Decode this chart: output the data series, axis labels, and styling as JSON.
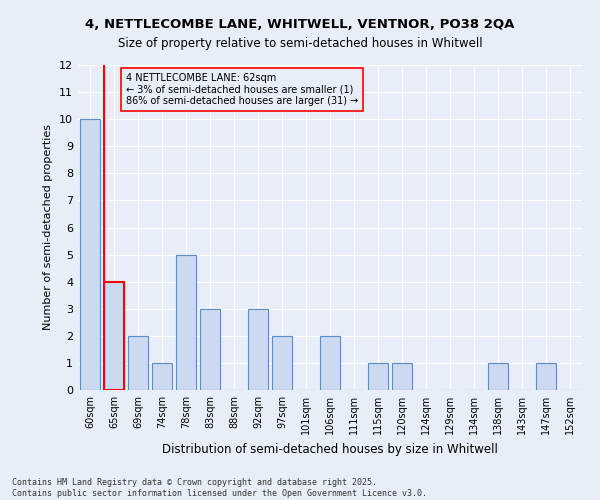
{
  "title1": "4, NETTLECOMBE LANE, WHITWELL, VENTNOR, PO38 2QA",
  "title2": "Size of property relative to semi-detached houses in Whitwell",
  "xlabel": "Distribution of semi-detached houses by size in Whitwell",
  "ylabel": "Number of semi-detached properties",
  "categories": [
    "60sqm",
    "65sqm",
    "69sqm",
    "74sqm",
    "78sqm",
    "83sqm",
    "88sqm",
    "92sqm",
    "97sqm",
    "101sqm",
    "106sqm",
    "111sqm",
    "115sqm",
    "120sqm",
    "124sqm",
    "129sqm",
    "134sqm",
    "138sqm",
    "143sqm",
    "147sqm",
    "152sqm"
  ],
  "values": [
    10,
    4,
    2,
    1,
    5,
    3,
    0,
    3,
    2,
    0,
    2,
    0,
    1,
    1,
    0,
    0,
    0,
    1,
    0,
    1,
    0
  ],
  "highlight_index": 1,
  "bar_color": "#ccd9f0",
  "bar_edge_color": "#5b8ec4",
  "highlight_bar_edge_color": "red",
  "annotation_title": "4 NETTLECOMBE LANE: 62sqm",
  "annotation_line1": "← 3% of semi-detached houses are smaller (1)",
  "annotation_line2": "86% of semi-detached houses are larger (31) →",
  "annotation_box_edge": "red",
  "ylim": [
    0,
    12
  ],
  "yticks": [
    0,
    1,
    2,
    3,
    4,
    5,
    6,
    7,
    8,
    9,
    10,
    11,
    12
  ],
  "footnote1": "Contains HM Land Registry data © Crown copyright and database right 2025.",
  "footnote2": "Contains public sector information licensed under the Open Government Licence v3.0.",
  "bg_color": "#e8eef8",
  "plot_bg_color": "#e8eef8"
}
